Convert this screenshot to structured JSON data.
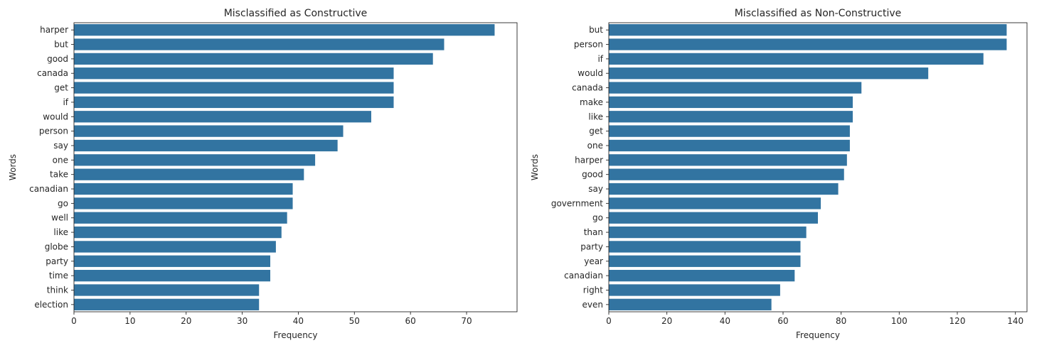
{
  "chart_data": [
    {
      "type": "bar",
      "orientation": "horizontal",
      "title": "Misclassified as Constructive",
      "xlabel": "Frequency",
      "ylabel": "Words",
      "xlim": [
        0,
        79
      ],
      "xticks": [
        0,
        10,
        20,
        30,
        40,
        50,
        60,
        70
      ],
      "grid": false,
      "bar_color": "#3274a1",
      "categories": [
        "harper",
        "but",
        "good",
        "canada",
        "get",
        "if",
        "would",
        "person",
        "say",
        "one",
        "take",
        "canadian",
        "go",
        "well",
        "like",
        "globe",
        "party",
        "time",
        "think",
        "election"
      ],
      "values": [
        75,
        66,
        64,
        57,
        57,
        57,
        53,
        48,
        47,
        43,
        41,
        39,
        39,
        38,
        37,
        36,
        35,
        35,
        33,
        33
      ]
    },
    {
      "type": "bar",
      "orientation": "horizontal",
      "title": "Misclassified as Non-Constructive",
      "xlabel": "Frequency",
      "ylabel": "Words",
      "xlim": [
        0,
        144
      ],
      "xticks": [
        0,
        20,
        40,
        60,
        80,
        100,
        120,
        140
      ],
      "grid": false,
      "bar_color": "#3274a1",
      "categories": [
        "but",
        "person",
        "if",
        "would",
        "canada",
        "make",
        "like",
        "get",
        "one",
        "harper",
        "good",
        "say",
        "government",
        "go",
        "than",
        "party",
        "year",
        "canadian",
        "right",
        "even"
      ],
      "values": [
        137,
        137,
        129,
        110,
        87,
        84,
        84,
        83,
        83,
        82,
        81,
        79,
        73,
        72,
        68,
        66,
        66,
        64,
        59,
        56
      ]
    }
  ]
}
